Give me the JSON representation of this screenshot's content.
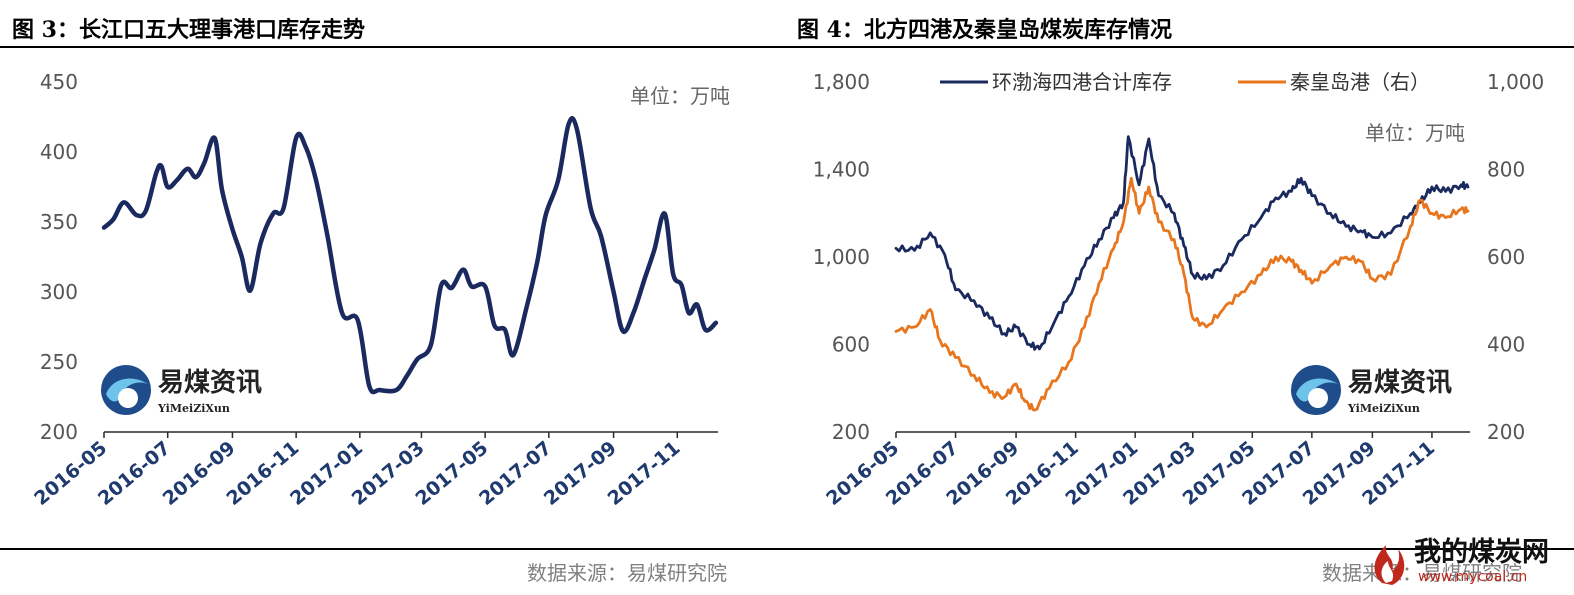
{
  "figures": {
    "left_title": "图 3：长江口五大理事港口库存走势",
    "right_title": "图 4：北方四港及秦皇岛煤炭库存情况",
    "left_source": "数据来源：易煤研究院",
    "right_source": "数据来源：易煤研究院"
  },
  "logo": {
    "name": "易煤资讯",
    "sub": "YiMeiZiXun"
  },
  "watermark": {
    "name": "我的煤炭网",
    "url": "www.mycoal.cn"
  },
  "colors": {
    "navy": "#1a2a5e",
    "orange": "#e8761e"
  },
  "chart_data": [
    {
      "type": "line",
      "title": "",
      "unit_label": "单位：万吨",
      "ylim": [
        200,
        450
      ],
      "yticks": [
        200,
        250,
        300,
        350,
        400,
        450
      ],
      "xticks": [
        "2016-05",
        "2016-07",
        "2016-09",
        "2016-11",
        "2017-01",
        "2017-03",
        "2017-05",
        "2017-07",
        "2017-09",
        "2017-11"
      ],
      "grid": false,
      "series": [
        {
          "color": "#1a2a5e",
          "points": [
            [
              "2016-05-01",
              346
            ],
            [
              "2016-05-10",
              352
            ],
            [
              "2016-05-20",
              364
            ],
            [
              "2016-06-01",
              355
            ],
            [
              "2016-06-10",
              358
            ],
            [
              "2016-06-20",
              385
            ],
            [
              "2016-06-25",
              390
            ],
            [
              "2016-07-01",
              375
            ],
            [
              "2016-07-10",
              380
            ],
            [
              "2016-07-20",
              388
            ],
            [
              "2016-07-28",
              382
            ],
            [
              "2016-08-05",
              392
            ],
            [
              "2016-08-15",
              410
            ],
            [
              "2016-08-22",
              373
            ],
            [
              "2016-09-01",
              345
            ],
            [
              "2016-09-10",
              325
            ],
            [
              "2016-09-18",
              301
            ],
            [
              "2016-09-28",
              335
            ],
            [
              "2016-10-10",
              356
            ],
            [
              "2016-10-20",
              360
            ],
            [
              "2016-11-01",
              410
            ],
            [
              "2016-11-10",
              404
            ],
            [
              "2016-11-20",
              380
            ],
            [
              "2016-12-01",
              340
            ],
            [
              "2016-12-15",
              285
            ],
            [
              "2016-12-30",
              280
            ],
            [
              "2017-01-10",
              233
            ],
            [
              "2017-01-20",
              230
            ],
            [
              "2017-02-05",
              230
            ],
            [
              "2017-02-15",
              240
            ],
            [
              "2017-02-25",
              252
            ],
            [
              "2017-03-10",
              262
            ],
            [
              "2017-03-20",
              305
            ],
            [
              "2017-03-30",
              303
            ],
            [
              "2017-04-10",
              316
            ],
            [
              "2017-04-18",
              304
            ],
            [
              "2017-05-01",
              304
            ],
            [
              "2017-05-10",
              276
            ],
            [
              "2017-05-20",
              273
            ],
            [
              "2017-05-28",
              255
            ],
            [
              "2017-06-10",
              290
            ],
            [
              "2017-06-20",
              322
            ],
            [
              "2017-06-28",
              355
            ],
            [
              "2017-07-10",
              380
            ],
            [
              "2017-07-20",
              420
            ],
            [
              "2017-07-28",
              416
            ],
            [
              "2017-08-10",
              360
            ],
            [
              "2017-08-20",
              340
            ],
            [
              "2017-09-01",
              300
            ],
            [
              "2017-09-10",
              272
            ],
            [
              "2017-09-20",
              285
            ],
            [
              "2017-10-01",
              310
            ],
            [
              "2017-10-10",
              330
            ],
            [
              "2017-10-20",
              356
            ],
            [
              "2017-10-28",
              313
            ],
            [
              "2017-11-05",
              305
            ],
            [
              "2017-11-12",
              285
            ],
            [
              "2017-11-20",
              291
            ],
            [
              "2017-11-28",
              273
            ],
            [
              "2017-12-08",
              278
            ]
          ]
        }
      ]
    },
    {
      "type": "line",
      "title": "",
      "unit_label": "单位：万吨",
      "ylim": [
        200,
        1800
      ],
      "yticks": [
        200,
        600,
        1000,
        1400,
        1800
      ],
      "y2lim": [
        200,
        1000
      ],
      "y2ticks": [
        200,
        400,
        600,
        800,
        1000
      ],
      "xticks": [
        "2016-05",
        "2016-07",
        "2016-09",
        "2016-11",
        "2017-01",
        "2017-03",
        "2017-05",
        "2017-07",
        "2017-09",
        "2017-11"
      ],
      "legend": "top",
      "grid": false,
      "series": [
        {
          "name": "环渤海四港合计库存",
          "color": "#1a2a5e",
          "axis": "left",
          "points": [
            [
              "2016-05-01",
              1040
            ],
            [
              "2016-05-20",
              1030
            ],
            [
              "2016-06-05",
              1110
            ],
            [
              "2016-06-20",
              1010
            ],
            [
              "2016-07-01",
              850
            ],
            [
              "2016-07-20",
              800
            ],
            [
              "2016-08-05",
              720
            ],
            [
              "2016-08-20",
              650
            ],
            [
              "2016-09-01",
              680
            ],
            [
              "2016-09-15",
              600
            ],
            [
              "2016-09-25",
              580
            ],
            [
              "2016-10-10",
              700
            ],
            [
              "2016-10-25",
              820
            ],
            [
              "2016-11-10",
              960
            ],
            [
              "2016-11-25",
              1080
            ],
            [
              "2016-12-10",
              1180
            ],
            [
              "2016-12-20",
              1250
            ],
            [
              "2016-12-25",
              1550
            ],
            [
              "2017-01-05",
              1330
            ],
            [
              "2017-01-15",
              1540
            ],
            [
              "2017-01-25",
              1280
            ],
            [
              "2017-02-10",
              1200
            ],
            [
              "2017-02-20",
              1050
            ],
            [
              "2017-03-01",
              920
            ],
            [
              "2017-03-15",
              900
            ],
            [
              "2017-04-01",
              960
            ],
            [
              "2017-04-20",
              1080
            ],
            [
              "2017-05-10",
              1180
            ],
            [
              "2017-05-25",
              1270
            ],
            [
              "2017-06-10",
              1300
            ],
            [
              "2017-06-20",
              1360
            ],
            [
              "2017-07-01",
              1280
            ],
            [
              "2017-07-20",
              1200
            ],
            [
              "2017-08-05",
              1140
            ],
            [
              "2017-08-20",
              1120
            ],
            [
              "2017-09-01",
              1090
            ],
            [
              "2017-09-20",
              1110
            ],
            [
              "2017-10-10",
              1200
            ],
            [
              "2017-10-20",
              1250
            ],
            [
              "2017-11-01",
              1320
            ],
            [
              "2017-11-15",
              1300
            ],
            [
              "2017-12-01",
              1330
            ],
            [
              "2017-12-08",
              1320
            ]
          ]
        },
        {
          "name": "秦皇岛港（右）",
          "color": "#e8761e",
          "axis": "right",
          "points": [
            [
              "2016-05-01",
              430
            ],
            [
              "2016-05-20",
              440
            ],
            [
              "2016-06-05",
              480
            ],
            [
              "2016-06-15",
              410
            ],
            [
              "2016-07-01",
              370
            ],
            [
              "2016-07-20",
              330
            ],
            [
              "2016-08-05",
              290
            ],
            [
              "2016-08-20",
              280
            ],
            [
              "2016-09-01",
              310
            ],
            [
              "2016-09-10",
              270
            ],
            [
              "2016-09-20",
              250
            ],
            [
              "2016-10-05",
              300
            ],
            [
              "2016-10-25",
              360
            ],
            [
              "2016-11-10",
              440
            ],
            [
              "2016-11-25",
              540
            ],
            [
              "2016-12-10",
              620
            ],
            [
              "2016-12-20",
              680
            ],
            [
              "2016-12-28",
              780
            ],
            [
              "2017-01-05",
              700
            ],
            [
              "2017-01-15",
              760
            ],
            [
              "2017-01-25",
              680
            ],
            [
              "2017-02-10",
              640
            ],
            [
              "2017-02-20",
              560
            ],
            [
              "2017-03-01",
              460
            ],
            [
              "2017-03-15",
              440
            ],
            [
              "2017-04-01",
              480
            ],
            [
              "2017-04-20",
              520
            ],
            [
              "2017-05-10",
              560
            ],
            [
              "2017-05-25",
              600
            ],
            [
              "2017-06-10",
              590
            ],
            [
              "2017-06-20",
              570
            ],
            [
              "2017-07-01",
              540
            ],
            [
              "2017-07-20",
              580
            ],
            [
              "2017-08-05",
              600
            ],
            [
              "2017-08-20",
              590
            ],
            [
              "2017-09-01",
              550
            ],
            [
              "2017-09-20",
              560
            ],
            [
              "2017-10-10",
              670
            ],
            [
              "2017-10-20",
              730
            ],
            [
              "2017-11-01",
              700
            ],
            [
              "2017-11-15",
              690
            ],
            [
              "2017-12-01",
              710
            ],
            [
              "2017-12-08",
              705
            ]
          ]
        }
      ]
    }
  ]
}
